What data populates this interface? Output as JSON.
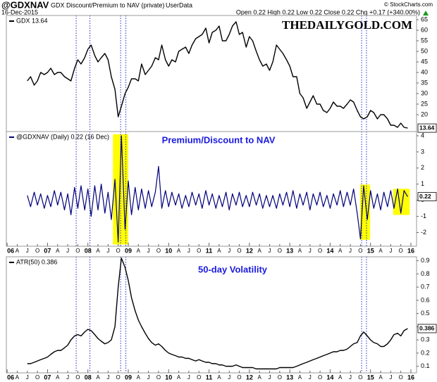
{
  "chart_data": {
    "type": "line",
    "title": "@GDXNAV",
    "subtitle": "GDX Discount/Premium to NAV (private)",
    "source": "UserData",
    "date": "16-Dec-2015",
    "quote": "Open 0.22 High 0.22 Low 0.22 Close 0.22 Chg +0.17 (+340.00%)",
    "credit": "© StockCharts.com",
    "watermark": "THEDAILYGOLD.COM",
    "xlim": [
      2005.98,
      2016.14
    ],
    "xticks": [
      {
        "value": 2006,
        "label": "06"
      },
      {
        "value": 2006.25,
        "label": "A"
      },
      {
        "value": 2006.5,
        "label": "J"
      },
      {
        "value": 2006.75,
        "label": "O"
      },
      {
        "value": 2007,
        "label": "07"
      },
      {
        "value": 2007.25,
        "label": "A"
      },
      {
        "value": 2007.5,
        "label": "J"
      },
      {
        "value": 2007.75,
        "label": "O"
      },
      {
        "value": 2008,
        "label": "08"
      },
      {
        "value": 2008.25,
        "label": "A"
      },
      {
        "value": 2008.5,
        "label": "J"
      },
      {
        "value": 2008.75,
        "label": "O"
      },
      {
        "value": 2009,
        "label": "09"
      },
      {
        "value": 2009.25,
        "label": "A"
      },
      {
        "value": 2009.5,
        "label": "J"
      },
      {
        "value": 2009.75,
        "label": "O"
      },
      {
        "value": 2010,
        "label": "10"
      },
      {
        "value": 2010.25,
        "label": "A"
      },
      {
        "value": 2010.5,
        "label": "J"
      },
      {
        "value": 2010.75,
        "label": "O"
      },
      {
        "value": 2011,
        "label": "11"
      },
      {
        "value": 2011.25,
        "label": "A"
      },
      {
        "value": 2011.5,
        "label": "J"
      },
      {
        "value": 2011.75,
        "label": "O"
      },
      {
        "value": 2012,
        "label": "12"
      },
      {
        "value": 2012.25,
        "label": "A"
      },
      {
        "value": 2012.5,
        "label": "J"
      },
      {
        "value": 2012.75,
        "label": "O"
      },
      {
        "value": 2013,
        "label": "13"
      },
      {
        "value": 2013.25,
        "label": "A"
      },
      {
        "value": 2013.5,
        "label": "J"
      },
      {
        "value": 2013.75,
        "label": "O"
      },
      {
        "value": 2014,
        "label": "14"
      },
      {
        "value": 2014.25,
        "label": "A"
      },
      {
        "value": 2014.5,
        "label": "J"
      },
      {
        "value": 2014.75,
        "label": "O"
      },
      {
        "value": 2015,
        "label": "15"
      },
      {
        "value": 2015.25,
        "label": "A"
      },
      {
        "value": 2015.5,
        "label": "J"
      },
      {
        "value": 2015.75,
        "label": "O"
      },
      {
        "value": 2016,
        "label": "16"
      }
    ],
    "markers": [
      2007.71,
      2008.05,
      2008.81,
      2008.94,
      2014.78,
      2014.9
    ],
    "marker_color": "#2a2ad0",
    "x": [
      2006.5,
      2006.58,
      2006.67,
      2006.75,
      2006.83,
      2006.92,
      2007.0,
      2007.08,
      2007.17,
      2007.25,
      2007.33,
      2007.42,
      2007.5,
      2007.58,
      2007.67,
      2007.75,
      2007.83,
      2007.92,
      2008.0,
      2008.08,
      2008.17,
      2008.25,
      2008.33,
      2008.42,
      2008.5,
      2008.58,
      2008.67,
      2008.75,
      2008.83,
      2008.92,
      2009.0,
      2009.08,
      2009.17,
      2009.25,
      2009.33,
      2009.42,
      2009.5,
      2009.58,
      2009.67,
      2009.75,
      2009.83,
      2009.92,
      2010.0,
      2010.08,
      2010.17,
      2010.25,
      2010.33,
      2010.42,
      2010.5,
      2010.58,
      2010.67,
      2010.75,
      2010.83,
      2010.92,
      2011.0,
      2011.08,
      2011.17,
      2011.25,
      2011.33,
      2011.42,
      2011.5,
      2011.58,
      2011.67,
      2011.75,
      2011.83,
      2011.92,
      2012.0,
      2012.08,
      2012.17,
      2012.25,
      2012.33,
      2012.42,
      2012.5,
      2012.58,
      2012.67,
      2012.75,
      2012.83,
      2012.92,
      2013.0,
      2013.08,
      2013.17,
      2013.25,
      2013.33,
      2013.42,
      2013.5,
      2013.58,
      2013.67,
      2013.75,
      2013.83,
      2013.92,
      2014.0,
      2014.08,
      2014.17,
      2014.25,
      2014.33,
      2014.42,
      2014.5,
      2014.58,
      2014.67,
      2014.75,
      2014.83,
      2014.92,
      2015.0,
      2015.08,
      2015.17,
      2015.25,
      2015.33,
      2015.42,
      2015.5,
      2015.58,
      2015.67,
      2015.75,
      2015.83,
      2015.92
    ],
    "panels": [
      {
        "ylim": [
          12,
          67
        ],
        "yticks": [
          20,
          25,
          30,
          35,
          40,
          45,
          50,
          55,
          60,
          65
        ],
        "series": [
          {
            "name": "GDX 13.64",
            "color": "#000000",
            "values": [
              36,
              38,
              34,
              36,
              40,
              39,
              40,
              42,
              39,
              40,
              40,
              38,
              37,
              36,
              42,
              46,
              44,
              47,
              51,
              53,
              48,
              45,
              47,
              49,
              46,
              38,
              32,
              19,
              24,
              30,
              33,
              37,
              37,
              36,
              44,
              39,
              41,
              43,
              47,
              46,
              53,
              46,
              43,
              46,
              45,
              50,
              51,
              52,
              49,
              53,
              56,
              57,
              58,
              61,
              54,
              59,
              60,
              62,
              55,
              55,
              58,
              62,
              64,
              58,
              59,
              52,
              57,
              55,
              50,
              46,
              43,
              44,
              41,
              45,
              53,
              51,
              49,
              46,
              43,
              38,
              38,
              30,
              28,
              23,
              26,
              29,
              25,
              25,
              22,
              21,
              23,
              26,
              24,
              24,
              23,
              25,
              27,
              26,
              22,
              19,
              18,
              19,
              22,
              21,
              18,
              20,
              20,
              18,
              15,
              15,
              14,
              16,
              14,
              13.64
            ]
          }
        ]
      },
      {
        "ylim": [
          -2.85,
          4.26
        ],
        "yticks": [
          4,
          3,
          2,
          1,
          0,
          -1,
          -2
        ],
        "annotation": "Premium/Discount to NAV",
        "highlight_color": "#ffff00",
        "highlights": [
          {
            "x": [
              2008.62,
              2009.0
            ],
            "y": [
              -2.74,
              4.09
            ]
          },
          {
            "x": [
              2014.74,
              2014.99
            ],
            "y": [
              -2.45,
              0.97
            ]
          },
          {
            "x": [
              2015.56,
              2015.97
            ],
            "y": [
              -0.91,
              0.71
            ]
          }
        ],
        "series": [
          {
            "name": "@GDXNAV (Daily) 0.22 (16 Dec)",
            "color": "#00007a",
            "values": [
              0.3,
              -0.4,
              0.5,
              -0.3,
              0.4,
              -0.5,
              0.3,
              -0.4,
              0.6,
              -0.3,
              0.5,
              -0.6,
              0.4,
              -0.9,
              0.8,
              -0.5,
              0.9,
              -0.6,
              0.7,
              -1.0,
              0.9,
              -0.6,
              1.0,
              -0.8,
              0.5,
              -1.2,
              1.3,
              -2.6,
              4.0,
              -1.8,
              1.2,
              -0.9,
              0.8,
              -0.6,
              0.7,
              -0.5,
              0.6,
              -0.4,
              0.5,
              2.1,
              -0.5,
              0.6,
              -0.4,
              0.5,
              -0.3,
              0.4,
              -0.5,
              0.3,
              -0.4,
              0.5,
              -0.3,
              0.4,
              -0.5,
              0.6,
              -0.3,
              0.4,
              -0.5,
              0.3,
              -0.4,
              0.5,
              -0.6,
              0.4,
              -0.3,
              0.5,
              -0.4,
              0.3,
              -0.4,
              0.5,
              -0.3,
              0.4,
              -0.5,
              0.3,
              -0.4,
              0.3,
              -0.5,
              0.4,
              -0.3,
              0.5,
              -0.4,
              0.6,
              -0.5,
              0.4,
              -0.3,
              0.5,
              -0.6,
              0.4,
              -0.3,
              0.5,
              -0.4,
              0.3,
              -0.5,
              0.4,
              -0.3,
              0.6,
              -0.4,
              0.5,
              -0.3,
              0.7,
              -0.8,
              -2.4,
              0.9,
              -1.2,
              0.6,
              -0.5,
              0.4,
              -0.6,
              0.5,
              -0.4,
              0.6,
              -0.5,
              0.7,
              -0.8,
              0.6,
              0.22
            ]
          }
        ]
      },
      {
        "ylim": [
          0.05,
          0.93
        ],
        "yticks": [
          0.1,
          0.2,
          0.3,
          0.4,
          0.5,
          0.6,
          0.7,
          0.8,
          0.9
        ],
        "annotation": "50-day Volatility",
        "series": [
          {
            "name": "ATR(50) 0.386",
            "color": "#000000",
            "values": [
              0.12,
              0.12,
              0.13,
              0.14,
              0.15,
              0.16,
              0.17,
              0.19,
              0.21,
              0.22,
              0.22,
              0.24,
              0.26,
              0.3,
              0.33,
              0.34,
              0.33,
              0.36,
              0.38,
              0.37,
              0.34,
              0.31,
              0.29,
              0.27,
              0.28,
              0.3,
              0.4,
              0.7,
              0.92,
              0.85,
              0.75,
              0.62,
              0.52,
              0.45,
              0.4,
              0.35,
              0.31,
              0.28,
              0.26,
              0.27,
              0.25,
              0.22,
              0.2,
              0.19,
              0.18,
              0.17,
              0.17,
              0.16,
              0.16,
              0.15,
              0.14,
              0.15,
              0.14,
              0.13,
              0.13,
              0.12,
              0.12,
              0.11,
              0.11,
              0.1,
              0.1,
              0.1,
              0.11,
              0.1,
              0.09,
              0.09,
              0.09,
              0.09,
              0.08,
              0.08,
              0.08,
              0.08,
              0.08,
              0.08,
              0.08,
              0.09,
              0.09,
              0.09,
              0.09,
              0.09,
              0.1,
              0.11,
              0.12,
              0.13,
              0.14,
              0.15,
              0.16,
              0.17,
              0.18,
              0.19,
              0.2,
              0.21,
              0.21,
              0.22,
              0.22,
              0.23,
              0.25,
              0.27,
              0.28,
              0.33,
              0.36,
              0.33,
              0.3,
              0.28,
              0.27,
              0.25,
              0.25,
              0.27,
              0.3,
              0.34,
              0.35,
              0.33,
              0.37,
              0.386
            ]
          }
        ]
      }
    ]
  }
}
